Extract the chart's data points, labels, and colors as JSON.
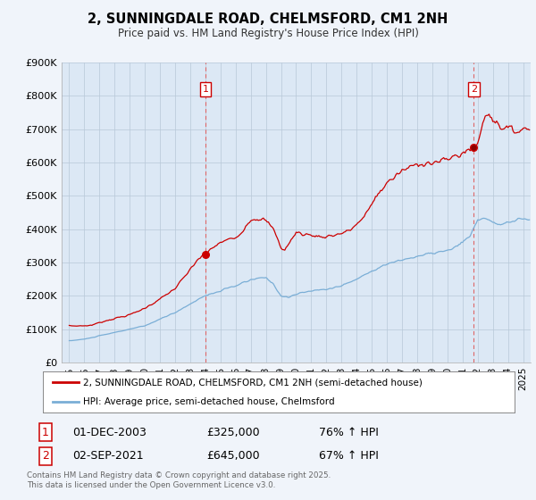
{
  "title": "2, SUNNINGDALE ROAD, CHELMSFORD, CM1 2NH",
  "subtitle": "Price paid vs. HM Land Registry's House Price Index (HPI)",
  "ylim": [
    0,
    900000
  ],
  "yticks": [
    0,
    100000,
    200000,
    300000,
    400000,
    500000,
    600000,
    700000,
    800000,
    900000
  ],
  "ytick_labels": [
    "£0",
    "£100K",
    "£200K",
    "£300K",
    "£400K",
    "£500K",
    "£600K",
    "£700K",
    "£800K",
    "£900K"
  ],
  "xlim_left": 1994.5,
  "xlim_right": 2025.5,
  "xtick_years": [
    1995,
    1996,
    1997,
    1998,
    1999,
    2000,
    2001,
    2002,
    2003,
    2004,
    2005,
    2006,
    2007,
    2008,
    2009,
    2010,
    2011,
    2012,
    2013,
    2014,
    2015,
    2016,
    2017,
    2018,
    2019,
    2020,
    2021,
    2022,
    2023,
    2024,
    2025
  ],
  "sale1_x": 2004.0,
  "sale1_y": 325000,
  "sale1_label": "1",
  "sale2_x": 2021.75,
  "sale2_y": 645000,
  "sale2_label": "2",
  "red_line_color": "#cc0000",
  "blue_line_color": "#7aaed6",
  "dashed_line_color": "#dd6666",
  "plot_bg_color": "#dce8f5",
  "background_color": "#f0f4fa",
  "legend_label_red": "2, SUNNINGDALE ROAD, CHELMSFORD, CM1 2NH (semi-detached house)",
  "legend_label_blue": "HPI: Average price, semi-detached house, Chelmsford",
  "table_row1": [
    "1",
    "01-DEC-2003",
    "£325,000",
    "76% ↑ HPI"
  ],
  "table_row2": [
    "2",
    "02-SEP-2021",
    "£645,000",
    "67% ↑ HPI"
  ],
  "footer": "Contains HM Land Registry data © Crown copyright and database right 2025.\nThis data is licensed under the Open Government Licence v3.0."
}
